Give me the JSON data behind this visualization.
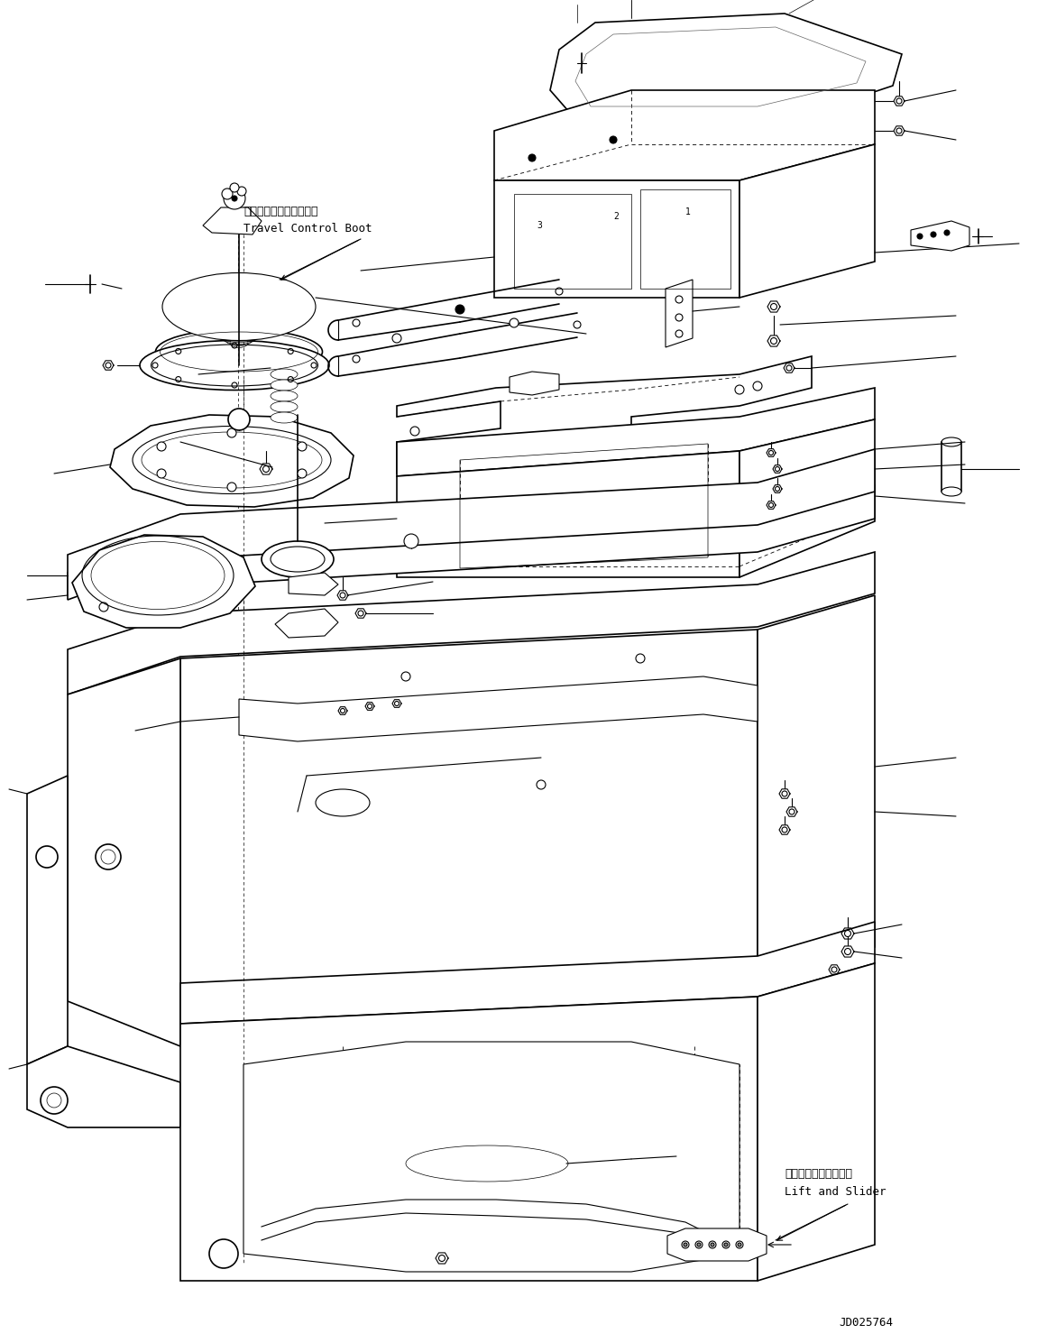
{
  "background_color": "#ffffff",
  "line_color": "#000000",
  "fig_width": 11.51,
  "fig_height": 14.89,
  "dpi": 100,
  "label_travel_control_boot_jp": "走行コントロールブート",
  "label_travel_control_boot_en": "Travel Control Boot",
  "label_lift_slider_jp": "リフトおよびスライダ",
  "label_lift_slider_en": "Lift and Slider",
  "part_number": "JD025764",
  "font_family": "monospace"
}
